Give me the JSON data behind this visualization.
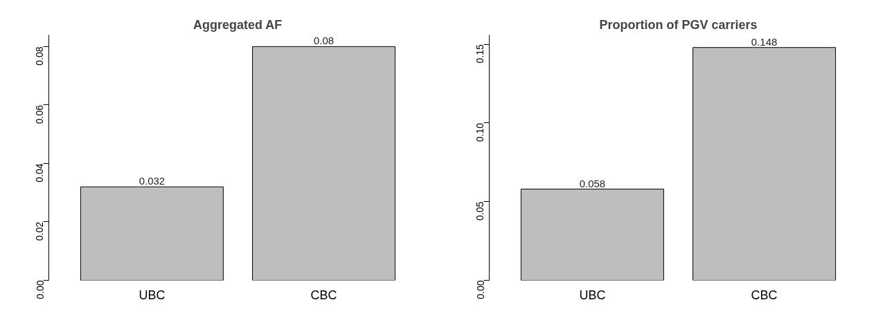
{
  "chart_data": [
    {
      "type": "bar",
      "title": "Aggregated AF",
      "categories": [
        "UBC",
        "CBC"
      ],
      "values": [
        0.032,
        0.08
      ],
      "color": "#bebebe",
      "ylim": [
        0,
        0.084
      ],
      "yticks": [
        {
          "value": 0,
          "label": "0.00"
        },
        {
          "value": 0.02,
          "label": "0.02"
        },
        {
          "value": 0.04,
          "label": "0.04"
        },
        {
          "value": 0.06,
          "label": "0.06"
        },
        {
          "value": 0.08,
          "label": "0.08"
        }
      ],
      "data_labels": true
    },
    {
      "type": "bar",
      "title": "Proportion of PGV carriers",
      "categories": [
        "UBC",
        "CBC"
      ],
      "values": [
        0.058,
        0.148
      ],
      "color": "#bebebe",
      "ylim": [
        0,
        0.156
      ],
      "yticks": [
        {
          "value": 0,
          "label": "0.00"
        },
        {
          "value": 0.05,
          "label": "0.05"
        },
        {
          "value": 0.1,
          "label": "0.10"
        },
        {
          "value": 0.15,
          "label": "0.15"
        }
      ],
      "data_labels": true
    }
  ]
}
